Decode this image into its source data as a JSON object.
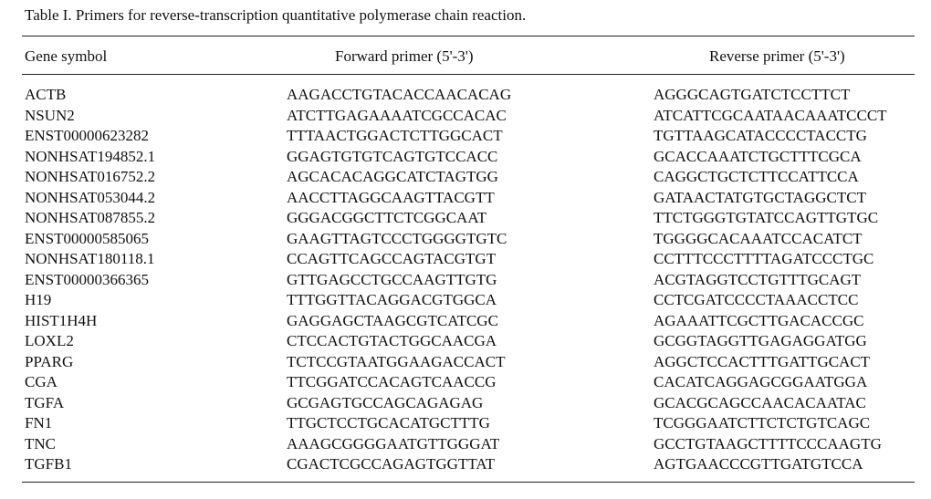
{
  "caption": "Table I. Primers for reverse-transcription quantitative polymerase chain reaction.",
  "headers": {
    "gene": "Gene symbol",
    "forward": "Forward primer (5'-3')",
    "reverse": "Reverse primer (5'-3')"
  },
  "rows": [
    {
      "gene": "ACTB",
      "forward": "AAGACCTGTACACCAACACAG",
      "reverse": "AGGGCAGTGATCTCCTTCT"
    },
    {
      "gene": "NSUN2",
      "forward": "ATCTTGAGAAAATCGCCACAC",
      "reverse": "ATCATTCGCAATAACAAATCCCT"
    },
    {
      "gene": "ENST00000623282",
      "forward": "TTTAACTGGACTCTTGGCACT",
      "reverse": "TGTTAAGCATACCCCTACCTG"
    },
    {
      "gene": "NONHSAT194852.1",
      "forward": "GGAGTGTGTCAGTGTCCACC",
      "reverse": "GCACCAAATCTGCTTTCGCA"
    },
    {
      "gene": "NONHSAT016752.2",
      "forward": "AGCACACAGGCATCTAGTGG",
      "reverse": "CAGGCTGCTCTTCCATTCCA"
    },
    {
      "gene": "NONHSAT053044.2",
      "forward": "AACCTTAGGCAAGTTACGTT",
      "reverse": "GATAACTATGTGCTAGGCTCT"
    },
    {
      "gene": "NONHSAT087855.2",
      "forward": "GGGACGGCTTCTCGGCAAT",
      "reverse": "TTCTGGGTGTATCCAGTTGTGC"
    },
    {
      "gene": "ENST00000585065",
      "forward": "GAAGTTAGTCCCTGGGGTGTC",
      "reverse": "TGGGGCACAAATCCACATCT"
    },
    {
      "gene": "NONHSAT180118.1",
      "forward": "CCAGTTCAGCCAGTACGTGT",
      "reverse": "CCTTTCCCTTTTAGATCCCTGC"
    },
    {
      "gene": "ENST00000366365",
      "forward": "GTTGAGCCTGCCAAGTTGTG",
      "reverse": "ACGTAGGTCCTGTTTGCAGT"
    },
    {
      "gene": "H19",
      "forward": "TTTGGTTACAGGACGTGGCA",
      "reverse": "CCTCGATCCCCTAAACCTCC"
    },
    {
      "gene": "HIST1H4H",
      "forward": "GAGGAGCTAAGCGTCATCGC",
      "reverse": "AGAAATTCGCTTGACACCGC"
    },
    {
      "gene": "LOXL2",
      "forward": "CTCCACTGTACTGGCAACGA",
      "reverse": "GCGGTAGGTTGAGAGGATGG"
    },
    {
      "gene": "PPARG",
      "forward": "TCTCCGTAATGGAAGACCACT",
      "reverse": "AGGCTCCACTTTGATTGCACT"
    },
    {
      "gene": "CGA",
      "forward": "TTCGGATCCACAGTCAACCG",
      "reverse": "CACATCAGGAGCGGAATGGA"
    },
    {
      "gene": "TGFA",
      "forward": "GCGAGTGCCAGCAGAGAG",
      "reverse": "GCACGCAGCCAACACAATAC"
    },
    {
      "gene": "FN1",
      "forward": "TTGCTCCTGCACATGCTTTG",
      "reverse": "TCGGGAATCTTCTCTGTCAGC"
    },
    {
      "gene": "TNC",
      "forward": "AAAGCGGGGAATGTTGGGAT",
      "reverse": "GCCTGTAAGCTTTTCCCAAGTG"
    },
    {
      "gene": "TGFB1",
      "forward": "CGACTCGCCAGAGTGGTTAT",
      "reverse": "AGTGAACCCGTTGATGTCCA"
    }
  ]
}
